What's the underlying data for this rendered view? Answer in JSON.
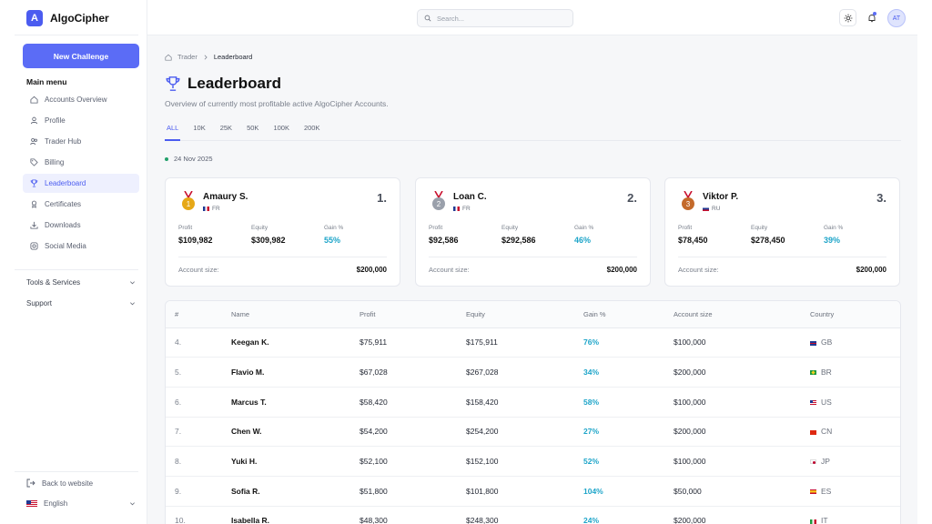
{
  "brand": {
    "logo_letter": "A",
    "name": "AlgoCipher"
  },
  "sidebar": {
    "new_button": "New Challenge",
    "menu_title": "Main menu",
    "items": [
      {
        "label": "Accounts Overview",
        "icon": "home-icon",
        "active": false
      },
      {
        "label": "Profile",
        "icon": "user-icon",
        "active": false
      },
      {
        "label": "Trader Hub",
        "icon": "users-icon",
        "active": false
      },
      {
        "label": "Billing",
        "icon": "tag-icon",
        "active": false
      },
      {
        "label": "Leaderboard",
        "icon": "trophy-icon",
        "active": true
      },
      {
        "label": "Certificates",
        "icon": "award-icon",
        "active": false
      },
      {
        "label": "Downloads",
        "icon": "download-icon",
        "active": false
      },
      {
        "label": "Social Media",
        "icon": "instagram-icon",
        "active": false
      }
    ],
    "sections": [
      "Tools & Services",
      "Support"
    ],
    "back_link": "Back to website",
    "language": "English"
  },
  "topbar": {
    "search_placeholder": "Search...",
    "avatar_initials": "AT"
  },
  "breadcrumb": {
    "root": "Trader",
    "current": "Leaderboard"
  },
  "page": {
    "title": "Leaderboard",
    "subtitle": "Overview of currently most profitable active AlgoCipher Accounts.",
    "tabs": [
      "ALL",
      "10K",
      "25K",
      "50K",
      "100K",
      "200K"
    ],
    "active_tab": "ALL",
    "date": "24 Nov 2025"
  },
  "labels": {
    "profit": "Profit",
    "equity": "Equity",
    "gain": "Gain %",
    "account_size": "Account size:"
  },
  "podium": [
    {
      "rank": "1.",
      "name": "Amaury S.",
      "country": "FR",
      "profit": "$109,982",
      "equity": "$309,982",
      "gain": "55%",
      "account_size": "$200,000",
      "medal_color": "#e6a817"
    },
    {
      "rank": "2.",
      "name": "Loan C.",
      "country": "FR",
      "profit": "$92,586",
      "equity": "$292,586",
      "gain": "46%",
      "account_size": "$200,000",
      "medal_color": "#9aa0ab"
    },
    {
      "rank": "3.",
      "name": "Viktor P.",
      "country": "RU",
      "profit": "$78,450",
      "equity": "$278,450",
      "gain": "39%",
      "account_size": "$200,000",
      "medal_color": "#c46a2b"
    }
  ],
  "table": {
    "headers": [
      "#",
      "Name",
      "Profit",
      "Equity",
      "Gain %",
      "Account size",
      "Country"
    ],
    "rows": [
      {
        "rank": "4.",
        "name": "Keegan K.",
        "profit": "$75,911",
        "equity": "$175,911",
        "gain": "76%",
        "account_size": "$100,000",
        "country": "GB"
      },
      {
        "rank": "5.",
        "name": "Flavio M.",
        "profit": "$67,028",
        "equity": "$267,028",
        "gain": "34%",
        "account_size": "$200,000",
        "country": "BR"
      },
      {
        "rank": "6.",
        "name": "Marcus T.",
        "profit": "$58,420",
        "equity": "$158,420",
        "gain": "58%",
        "account_size": "$100,000",
        "country": "US"
      },
      {
        "rank": "7.",
        "name": "Chen W.",
        "profit": "$54,200",
        "equity": "$254,200",
        "gain": "27%",
        "account_size": "$200,000",
        "country": "CN"
      },
      {
        "rank": "8.",
        "name": "Yuki H.",
        "profit": "$52,100",
        "equity": "$152,100",
        "gain": "52%",
        "account_size": "$100,000",
        "country": "JP"
      },
      {
        "rank": "9.",
        "name": "Sofia R.",
        "profit": "$51,800",
        "equity": "$101,800",
        "gain": "104%",
        "account_size": "$50,000",
        "country": "ES"
      },
      {
        "rank": "10.",
        "name": "Isabella R.",
        "profit": "$48,300",
        "equity": "$248,300",
        "gain": "24%",
        "account_size": "$200,000",
        "country": "IT"
      }
    ]
  },
  "colors": {
    "accent": "#5b6cf6",
    "gain": "#1ea5c9",
    "status_dot": "#22a06b"
  }
}
